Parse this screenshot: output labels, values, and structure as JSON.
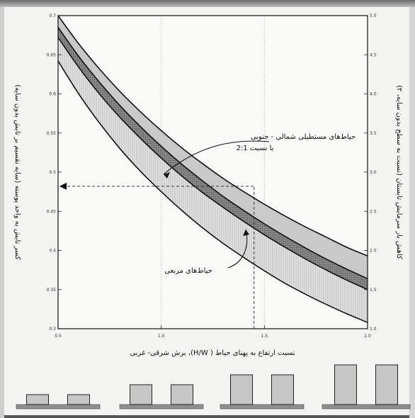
{
  "chart_data": {
    "type": "area",
    "x": [
      0.5,
      0.6,
      0.7,
      0.8,
      0.9,
      1.0,
      1.1,
      1.2,
      1.3,
      1.4,
      1.5,
      1.6,
      1.7,
      1.8,
      1.9,
      2.0
    ],
    "xlim": [
      0.5,
      2.0
    ],
    "ylim": [
      0.3,
      0.7
    ],
    "ylim_right": [
      1.0,
      5.0
    ],
    "xticks": [
      "0.5",
      "1.0",
      "1.5",
      "2.0"
    ],
    "yticks_left": [
      "0.7",
      "0.65",
      "0.6",
      "0.55",
      "0.5",
      "0.45",
      "0.4",
      "0.35",
      "0.3"
    ],
    "yticks_right": [
      "5.0",
      "4.5",
      "4.0",
      "3.5",
      "3.0",
      "2.5",
      "2.0",
      "1.5",
      "1.0"
    ],
    "xlabel": "نسبت ارتفاع به پهنای حیاط ( H/W)، برش شرقی- غربی",
    "ylabel_left": "کسر تابش به واحد پوسته (سایه تقسیم بر تابش بدون سایه)",
    "ylabel_right": "کاهش بار سرمایش تابستان (نسبت به سطح بدون سایه، ۲)",
    "series": [
      {
        "name": "حیاط‌های مستطیلی شمالی - جنوبی با نسبت 2:1",
        "upper": [
          0.7,
          0.664,
          0.632,
          0.603,
          0.577,
          0.553,
          0.531,
          0.511,
          0.492,
          0.475,
          0.459,
          0.444,
          0.43,
          0.417,
          0.404,
          0.393
        ],
        "lower": [
          0.672,
          0.634,
          0.6,
          0.57,
          0.543,
          0.518,
          0.495,
          0.474,
          0.455,
          0.437,
          0.42,
          0.404,
          0.389,
          0.375,
          0.362,
          0.35
        ]
      },
      {
        "name": "حیاط‌های مربعی",
        "upper": [
          0.685,
          0.648,
          0.615,
          0.585,
          0.558,
          0.533,
          0.51,
          0.489,
          0.469,
          0.451,
          0.434,
          0.418,
          0.403,
          0.389,
          0.376,
          0.364
        ],
        "lower": [
          0.642,
          0.6,
          0.563,
          0.53,
          0.501,
          0.475,
          0.451,
          0.429,
          0.409,
          0.391,
          0.374,
          0.358,
          0.344,
          0.331,
          0.319,
          0.308
        ]
      }
    ],
    "reference": {
      "x": 1.45,
      "y": 0.482
    },
    "labels": {
      "rect": [
        "حیاط‌های مستطیلی شمالی - جنوبی",
        "با نسبت 2:1"
      ],
      "square": "حیاط‌های مربعی"
    },
    "courtyard_sketches": [
      {
        "height_ratio": 0.5
      },
      {
        "height_ratio": 1.0
      },
      {
        "height_ratio": 1.5
      },
      {
        "height_ratio": 2.0
      }
    ],
    "colors": {
      "rect_band": "#c9c9c9",
      "overlap_band": "#8c8c8c",
      "square_band": "#e3e3e3",
      "line": "#111111",
      "building": "#c6c6c6",
      "ground": "#8f8f8f"
    }
  }
}
